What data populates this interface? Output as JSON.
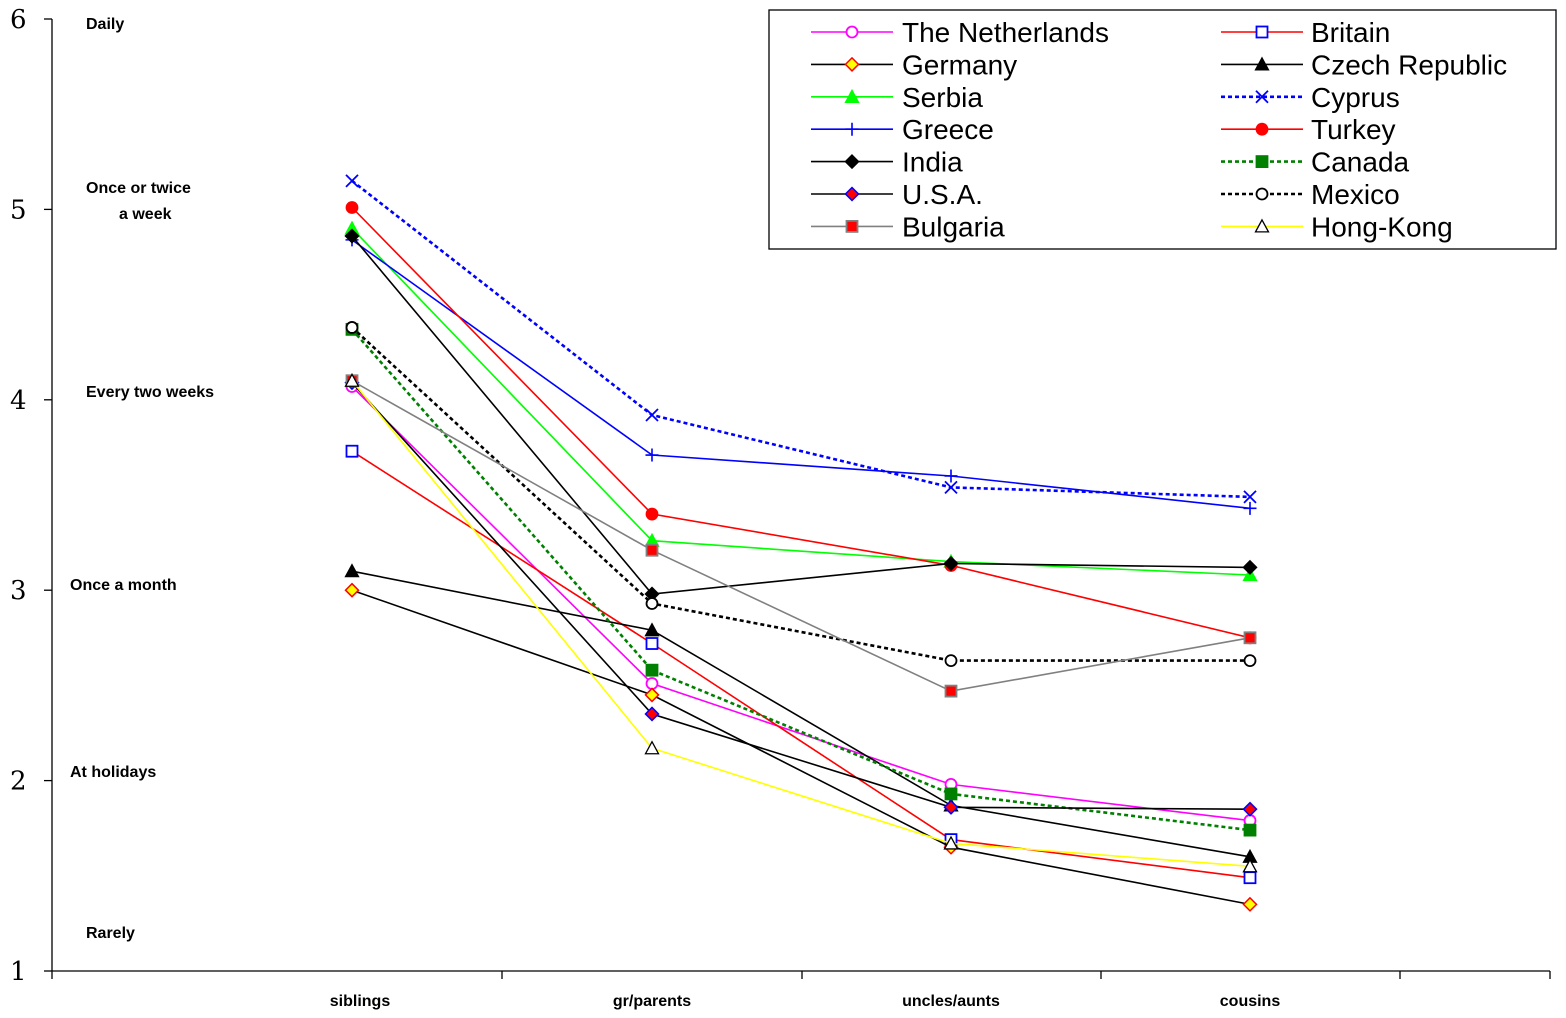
{
  "chart_data": {
    "type": "line",
    "categories": [
      "siblings",
      "gr/parents",
      "uncles/aunts",
      "cousins"
    ],
    "ylim": [
      1,
      6
    ],
    "yticks": [
      "1",
      "2",
      "3",
      "4",
      "5",
      "6"
    ],
    "frequency_labels": [
      {
        "y": 6,
        "lines": [
          "Daily"
        ]
      },
      {
        "y": 5,
        "lines": [
          "Once or twice",
          "a week"
        ]
      },
      {
        "y": 4,
        "lines": [
          "Every two weeks"
        ]
      },
      {
        "y": 3,
        "lines": [
          "Once a month"
        ]
      },
      {
        "y": 2,
        "lines": [
          "At holidays"
        ]
      },
      {
        "y": 1,
        "lines": [
          "Rarely"
        ]
      }
    ],
    "legend_position": "top-right",
    "series": [
      {
        "name": "The Netherlands",
        "values": [
          4.07,
          2.51,
          1.98,
          1.79
        ],
        "color": "#ff00ff",
        "dash": "solid",
        "marker": "circle",
        "marker_fill": "#ffffff",
        "marker_stroke": "#ff00ff"
      },
      {
        "name": "Britain",
        "values": [
          3.73,
          2.72,
          1.69,
          1.49
        ],
        "color": "#ff0000",
        "dash": "solid",
        "marker": "square",
        "marker_fill": "#ffffff",
        "marker_stroke": "#0000ff"
      },
      {
        "name": "Germany",
        "values": [
          3.0,
          2.45,
          1.65,
          1.35
        ],
        "color": "#000000",
        "dash": "solid",
        "marker": "diamond",
        "marker_fill": "#ffff00",
        "marker_stroke": "#ff0000"
      },
      {
        "name": "Czech Republic",
        "values": [
          3.1,
          2.79,
          1.87,
          1.6
        ],
        "color": "#000000",
        "dash": "solid",
        "marker": "triangle",
        "marker_fill": "#000000",
        "marker_stroke": "#000000"
      },
      {
        "name": "Serbia",
        "values": [
          4.9,
          3.26,
          3.15,
          3.08
        ],
        "color": "#00ff00",
        "dash": "solid",
        "marker": "triangle",
        "marker_fill": "#00ff00",
        "marker_stroke": "#00ff00"
      },
      {
        "name": "Cyprus",
        "values": [
          5.15,
          3.92,
          3.54,
          3.49
        ],
        "color": "#0000ff",
        "dash": "dotted",
        "marker": "x",
        "marker_fill": "none",
        "marker_stroke": "#0000ff"
      },
      {
        "name": "Greece",
        "values": [
          4.84,
          3.71,
          3.6,
          3.43
        ],
        "color": "#0000ff",
        "dash": "solid",
        "marker": "plus",
        "marker_fill": "none",
        "marker_stroke": "#0000ff"
      },
      {
        "name": "Turkey",
        "values": [
          5.01,
          3.4,
          3.13,
          2.75
        ],
        "color": "#ff0000",
        "dash": "solid",
        "marker": "circle",
        "marker_fill": "#ff0000",
        "marker_stroke": "#ff0000"
      },
      {
        "name": "India",
        "values": [
          4.86,
          2.98,
          3.14,
          3.12
        ],
        "color": "#000000",
        "dash": "solid",
        "marker": "diamond",
        "marker_fill": "#000000",
        "marker_stroke": "#000000"
      },
      {
        "name": "Canada",
        "values": [
          4.37,
          2.58,
          1.93,
          1.74
        ],
        "color": "#008000",
        "dash": "dotted",
        "marker": "square",
        "marker_fill": "#008000",
        "marker_stroke": "#008000"
      },
      {
        "name": "U.S.A.",
        "values": [
          4.09,
          2.35,
          1.86,
          1.85
        ],
        "color": "#000000",
        "dash": "solid",
        "marker": "diamond",
        "marker_fill": "#ff0000",
        "marker_stroke": "#0000ff"
      },
      {
        "name": "Mexico",
        "values": [
          4.38,
          2.93,
          2.63,
          2.63
        ],
        "color": "#000000",
        "dash": "dotted",
        "marker": "circle",
        "marker_fill": "#ffffff",
        "marker_stroke": "#000000"
      },
      {
        "name": "Bulgaria",
        "values": [
          4.1,
          3.21,
          2.47,
          2.75
        ],
        "color": "#808080",
        "dash": "solid",
        "marker": "square",
        "marker_fill": "#ff0000",
        "marker_stroke": "#808080"
      },
      {
        "name": "Hong-Kong",
        "values": [
          4.1,
          2.17,
          1.67,
          1.55
        ],
        "color": "#ffff00",
        "dash": "solid",
        "marker": "triangle",
        "marker_fill": "#ffffff",
        "marker_stroke": "#000000"
      }
    ]
  }
}
